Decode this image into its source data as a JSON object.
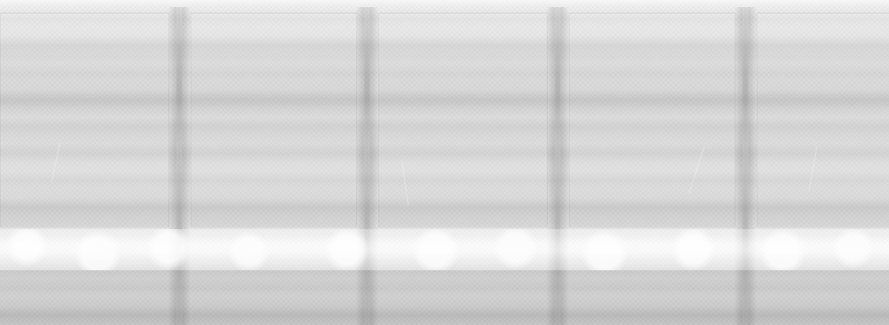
{
  "image": {
    "palette": {
      "light": "#f6f6f6",
      "mid": "#d9d9d9",
      "dark": "#cfcfcf"
    }
  }
}
